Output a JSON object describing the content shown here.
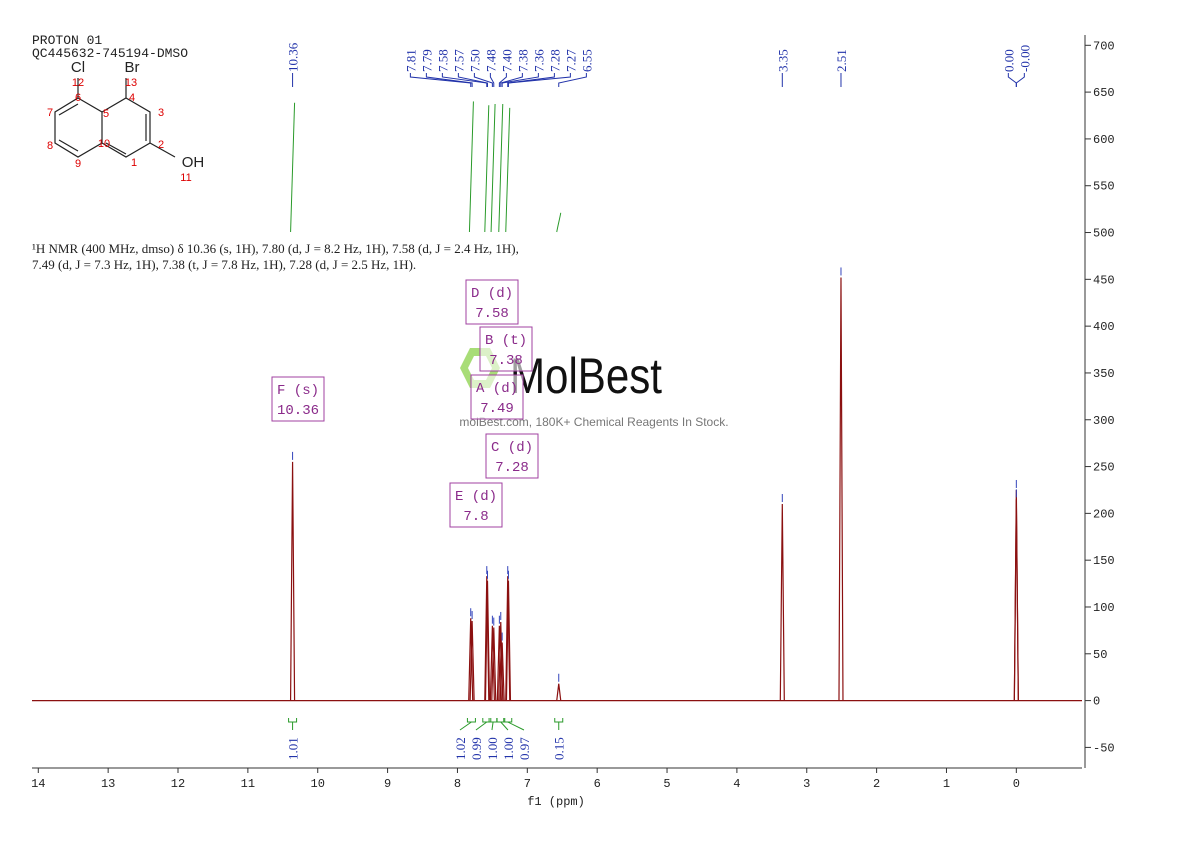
{
  "header": {
    "title_lines": [
      "PROTON 01",
      "QC445632-745194-DMSO"
    ]
  },
  "structure": {
    "atoms": [
      "Cl",
      "Br",
      "OH"
    ],
    "numbers": [
      "12",
      "13",
      "6",
      "4",
      "7",
      "5",
      "3",
      "8",
      "10",
      "2",
      "9",
      "1",
      "11"
    ]
  },
  "annotation": [
    "¹H NMR (400 MHz, dmso) δ 10.36 (s, 1H), 7.80 (d, J = 8.2 Hz, 1H), 7.58 (d, J = 2.4 Hz, 1H),",
    "7.49 (d, J = 7.3 Hz, 1H), 7.38 (t, J = 7.8 Hz, 1H), 7.28 (d, J = 2.5 Hz, 1H)."
  ],
  "watermark": {
    "brand": "MolBest",
    "tagline": "molBest.com, 180K+ Chemical Reagents In Stock."
  },
  "chart_data": {
    "type": "nmr",
    "x_label": "f1 (ppm)",
    "color": "#8b1010",
    "xlim": [
      14.09,
      -0.94
    ],
    "xticks": [
      14,
      13,
      12,
      11,
      10,
      9,
      8,
      7,
      6,
      5,
      4,
      3,
      2,
      1,
      0
    ],
    "ylim": [
      -72,
      711
    ],
    "yticks": [
      -50,
      0,
      50,
      100,
      150,
      200,
      250,
      300,
      350,
      400,
      450,
      500,
      550,
      600,
      650,
      700
    ],
    "peaks": {
      "shifts": [
        10.36,
        7.81,
        7.79,
        7.58,
        7.57,
        {
          "value": 7.5,
          "label": "7.50"
        },
        7.48,
        {
          "value": 7.4,
          "label": "7.40"
        },
        7.38,
        7.36,
        7.28,
        7.27,
        6.55,
        3.35,
        2.51,
        {
          "value": 0,
          "label": "0.00"
        },
        {
          "value": 0,
          "label": "-0.00"
        }
      ],
      "heights": [
        255,
        88,
        85,
        133,
        128,
        80,
        78,
        80,
        84,
        62,
        133,
        128,
        18,
        210,
        452,
        225,
        215
      ]
    },
    "multiplets": [
      {
        "label": "F (s)",
        "shift": 10.36,
        "integral": 1.01
      },
      {
        "label": "E (d)",
        "shift": 7.8,
        "integral": 1.02
      },
      {
        "label": "D (d)",
        "shift": 7.58,
        "integral": 0.99
      },
      {
        "label": "A (d)",
        "shift": 7.49,
        "integral": {
          "value": 1,
          "label": "1.00"
        }
      },
      {
        "label": "B (t)",
        "shift": 7.38,
        "integral": {
          "value": 1,
          "label": "1.00"
        }
      },
      {
        "label": "C (d)",
        "shift": 7.28,
        "integral": 0.97
      },
      {
        "shift": 6.55,
        "integral": 0.15
      }
    ]
  }
}
